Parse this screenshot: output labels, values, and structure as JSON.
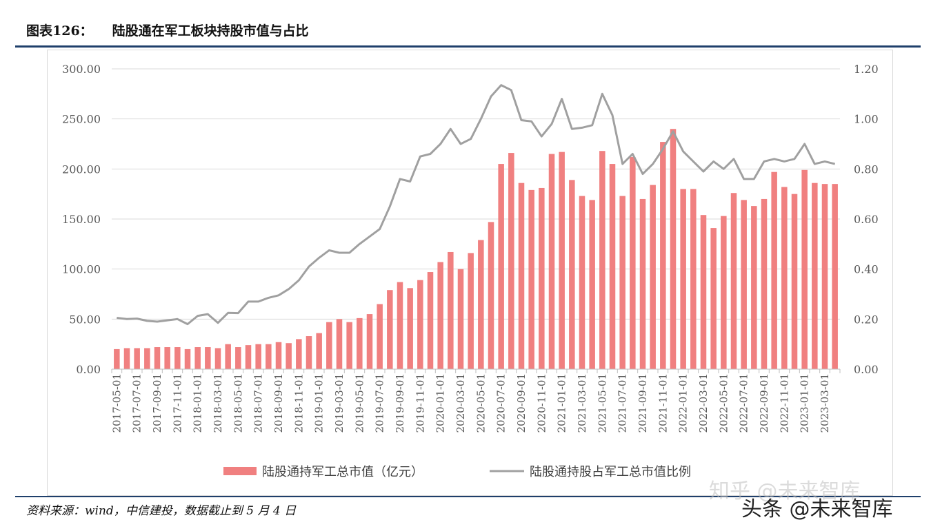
{
  "title": {
    "label": "图表126：",
    "text": "陆股通在军工板块持股市值与占比"
  },
  "source": "资料来源：wind，中信建投，数据截止到 5 月 4 日",
  "watermarks": {
    "zhihu": "知乎 @未来智库",
    "toutiao": "头条 @未来智库"
  },
  "colors": {
    "bar": "#f08080",
    "line": "#a0a0a0",
    "axis": "#bfbfbf",
    "grid": "#d9d9d9",
    "rule": "#1f3f6b"
  },
  "chart_data": {
    "type": "bar",
    "x": [
      "2017-05-01",
      "2017-06-01",
      "2017-07-01",
      "2017-08-01",
      "2017-09-01",
      "2017-10-01",
      "2017-11-01",
      "2017-12-01",
      "2018-01-01",
      "2018-02-01",
      "2018-03-01",
      "2018-04-01",
      "2018-05-01",
      "2018-06-01",
      "2018-07-01",
      "2018-08-01",
      "2018-09-01",
      "2018-10-01",
      "2018-11-01",
      "2018-12-01",
      "2019-01-01",
      "2019-02-01",
      "2019-03-01",
      "2019-04-01",
      "2019-05-01",
      "2019-06-01",
      "2019-07-01",
      "2019-08-01",
      "2019-09-01",
      "2019-10-01",
      "2019-11-01",
      "2019-12-01",
      "2020-01-01",
      "2020-02-01",
      "2020-03-01",
      "2020-04-01",
      "2020-05-01",
      "2020-06-01",
      "2020-07-01",
      "2020-08-01",
      "2020-09-01",
      "2020-10-01",
      "2020-11-01",
      "2020-12-01",
      "2021-01-01",
      "2021-02-01",
      "2021-03-01",
      "2021-04-01",
      "2021-05-01",
      "2021-06-01",
      "2021-07-01",
      "2021-08-01",
      "2021-09-01",
      "2021-10-01",
      "2021-11-01",
      "2021-12-01",
      "2022-01-01",
      "2022-02-01",
      "2022-03-01",
      "2022-04-01",
      "2022-05-01",
      "2022-06-01",
      "2022-07-01",
      "2022-08-01",
      "2022-09-01",
      "2022-10-01",
      "2022-11-01",
      "2022-12-01",
      "2023-01-01",
      "2023-02-01",
      "2023-03-01",
      "2023-04-01"
    ],
    "xticks": [
      "2017-05-01",
      "2017-07-01",
      "2017-09-01",
      "2017-11-01",
      "2018-01-01",
      "2018-03-01",
      "2018-05-01",
      "2018-07-01",
      "2018-09-01",
      "2018-11-01",
      "2019-01-01",
      "2019-03-01",
      "2019-05-01",
      "2019-07-01",
      "2019-09-01",
      "2019-11-01",
      "2020-01-01",
      "2020-03-01",
      "2020-05-01",
      "2020-07-01",
      "2020-09-01",
      "2020-11-01",
      "2021-01-01",
      "2021-03-01",
      "2021-05-01",
      "2021-07-01",
      "2021-09-01",
      "2021-11-01",
      "2022-01-01",
      "2022-03-01",
      "2022-05-01",
      "2022-07-01",
      "2022-09-01",
      "2022-11-01",
      "2023-01-01",
      "2023-03-01"
    ],
    "series": [
      {
        "name": "陆股通持军工总市值（亿元）",
        "type": "bar",
        "axis": "left",
        "values": [
          20,
          21,
          21,
          21,
          22,
          22,
          22,
          20,
          22,
          22,
          21,
          25,
          22,
          24,
          25,
          25,
          27,
          26,
          30,
          33,
          36,
          47,
          50,
          47,
          51,
          55,
          65,
          79,
          87,
          81,
          89,
          97,
          107,
          117,
          100,
          116,
          129,
          147,
          205,
          216,
          186,
          179,
          181,
          215,
          217,
          189,
          173,
          169,
          218,
          205,
          173,
          212,
          170,
          184,
          227,
          240,
          180,
          180,
          154,
          141,
          153,
          176,
          169,
          163,
          170,
          197,
          182,
          175,
          199,
          186,
          185,
          185
        ]
      },
      {
        "name": "陆股通持股占军工总市值比例",
        "type": "line",
        "axis": "right",
        "values": [
          0.205,
          0.2,
          0.202,
          0.193,
          0.19,
          0.195,
          0.2,
          0.18,
          0.213,
          0.22,
          0.185,
          0.225,
          0.224,
          0.27,
          0.27,
          0.285,
          0.295,
          0.32,
          0.355,
          0.41,
          0.445,
          0.475,
          0.465,
          0.465,
          0.5,
          0.53,
          0.56,
          0.65,
          0.76,
          0.75,
          0.85,
          0.86,
          0.9,
          0.96,
          0.9,
          0.92,
          1.0,
          1.09,
          1.135,
          1.115,
          0.995,
          0.99,
          0.93,
          0.98,
          1.08,
          0.96,
          0.965,
          0.975,
          1.1,
          1.015,
          0.82,
          0.86,
          0.78,
          0.82,
          0.88,
          0.95,
          0.87,
          0.83,
          0.79,
          0.83,
          0.8,
          0.84,
          0.76,
          0.76,
          0.83,
          0.84,
          0.83,
          0.84,
          0.9,
          0.82,
          0.83,
          0.82
        ]
      }
    ],
    "yleft": {
      "min": 0,
      "max": 300,
      "ticks": [
        "0.00",
        "50.00",
        "100.00",
        "150.00",
        "200.00",
        "250.00",
        "300.00"
      ]
    },
    "yright": {
      "min": 0,
      "max": 1.2,
      "ticks": [
        "0.00",
        "0.20",
        "0.40",
        "0.60",
        "0.80",
        "1.00",
        "1.20"
      ]
    },
    "grid": true,
    "legend": "bottom"
  }
}
